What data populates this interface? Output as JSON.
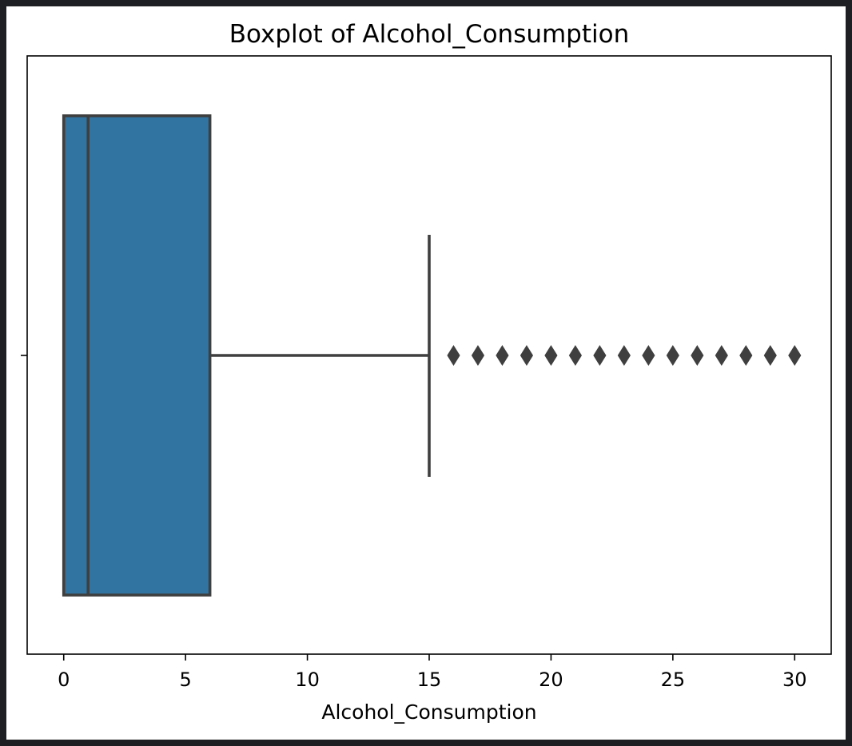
{
  "chart_data": {
    "type": "boxplot",
    "title": "Boxplot of Alcohol_Consumption",
    "xlabel": "Alcohol_Consumption",
    "ylabel": "",
    "xlim": [
      -1.5,
      31.5
    ],
    "xticks": [
      0,
      5,
      10,
      15,
      20,
      25,
      30
    ],
    "grid": false,
    "box": {
      "min_whisker": 0,
      "q1": 0,
      "median": 1,
      "q3": 6,
      "max_whisker": 15
    },
    "outliers": [
      16,
      17,
      18,
      19,
      20,
      21,
      22,
      23,
      24,
      25,
      26,
      27,
      28,
      29,
      30
    ],
    "colors": {
      "box_fill": "#3274a1",
      "lines": "#3f3f3f",
      "background": "#ffffff",
      "frame": "#1e1f22"
    }
  }
}
